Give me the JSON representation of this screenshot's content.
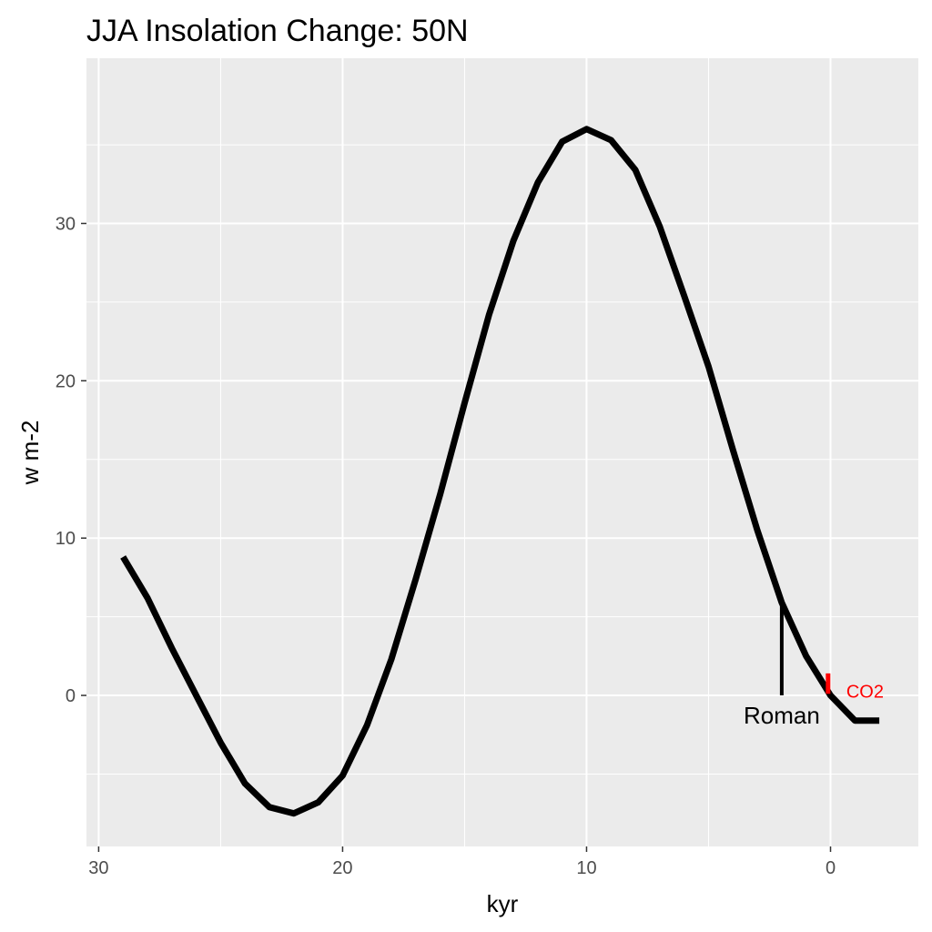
{
  "chart_data": {
    "type": "line",
    "title": "JJA Insolation Change: 50N",
    "xlabel": "kyr",
    "ylabel": "w m-2",
    "x_reversed": true,
    "xlim": [
      30.5,
      -3.6
    ],
    "ylim": [
      -9.6,
      40.5
    ],
    "x_ticks": [
      30,
      20,
      10,
      0
    ],
    "x_tick_labels": [
      "30",
      "20",
      "10",
      "0"
    ],
    "y_ticks": [
      0,
      10,
      20,
      30
    ],
    "y_tick_labels": [
      "0",
      "10",
      "20",
      "30"
    ],
    "grid": true,
    "background": "#ebebeb",
    "line_color": "#000000",
    "series": [
      {
        "x": [
          29,
          28,
          27,
          26,
          25,
          24,
          23,
          22,
          21,
          20,
          19,
          18,
          17,
          16,
          15,
          14,
          13,
          12,
          11,
          10,
          9,
          8,
          7,
          6,
          5,
          4,
          3,
          2,
          1,
          0,
          -1,
          -2
        ],
        "y": [
          8.8,
          6.2,
          3.0,
          0.0,
          -3.0,
          -5.6,
          -7.1,
          -7.5,
          -6.8,
          -5.1,
          -1.9,
          2.3,
          7.4,
          12.8,
          18.6,
          24.2,
          28.9,
          32.6,
          35.2,
          36.0,
          35.3,
          33.4,
          29.8,
          25.4,
          20.9,
          15.6,
          10.5,
          5.9,
          2.5,
          0.0,
          -1.6,
          -1.6
        ]
      }
    ],
    "annotations": [
      {
        "label": "Roman",
        "x": 2,
        "y_from": 0,
        "y_to": 5.8,
        "color": "#000000"
      },
      {
        "label": "CO2",
        "x": 0.1,
        "y_from": 0.1,
        "y_to": 1.4,
        "color": "#ff0000"
      }
    ]
  }
}
